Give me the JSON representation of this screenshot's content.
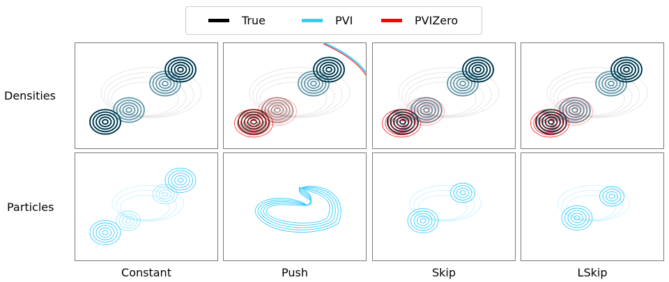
{
  "legend": {
    "items": [
      {
        "label": "True",
        "color": "#000000"
      },
      {
        "label": "PVI",
        "color": "#33ccff"
      },
      {
        "label": "PVIZero",
        "color": "#ff0000"
      }
    ]
  },
  "rows": [
    {
      "label": "Densities"
    },
    {
      "label": "Particles"
    }
  ],
  "columns": [
    {
      "label": "Constant"
    },
    {
      "label": "Push"
    },
    {
      "label": "Skip"
    },
    {
      "label": "LSkip"
    }
  ]
}
